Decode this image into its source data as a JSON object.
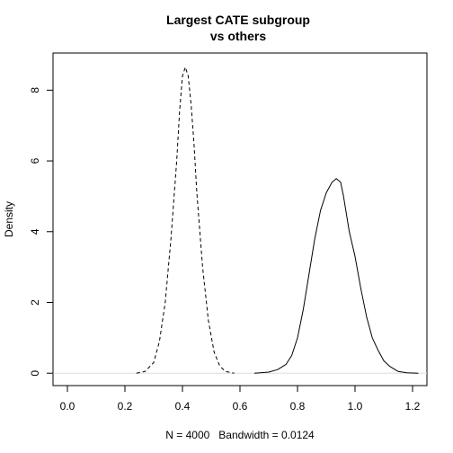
{
  "chart_data": {
    "type": "line",
    "title_lines": [
      "Largest CATE subgroup",
      "vs others"
    ],
    "xlabel": "N = 4000   Bandwidth = 0.0124",
    "ylabel": "Density",
    "xlim": [
      -0.05,
      1.25
    ],
    "ylim": [
      -0.35,
      9.05
    ],
    "x_ticks": [
      0.0,
      0.2,
      0.4,
      0.6,
      0.8,
      1.0,
      1.2
    ],
    "x_tick_labels": [
      "0.0",
      "0.2",
      "0.4",
      "0.6",
      "0.8",
      "1.0",
      "1.2"
    ],
    "y_ticks": [
      0,
      2,
      4,
      6,
      8
    ],
    "y_tick_labels": [
      "0",
      "2",
      "4",
      "6",
      "8"
    ],
    "grid": false,
    "baseline": {
      "y": 0,
      "color": "#dddddd"
    },
    "series": [
      {
        "line_style": "dashed",
        "color": "#000000",
        "points": [
          [
            0.24,
            0.0
          ],
          [
            0.27,
            0.05
          ],
          [
            0.3,
            0.3
          ],
          [
            0.32,
            0.9
          ],
          [
            0.34,
            2.0
          ],
          [
            0.36,
            3.8
          ],
          [
            0.38,
            6.0
          ],
          [
            0.39,
            7.4
          ],
          [
            0.4,
            8.4
          ],
          [
            0.41,
            8.65
          ],
          [
            0.42,
            8.4
          ],
          [
            0.43,
            7.6
          ],
          [
            0.44,
            6.5
          ],
          [
            0.45,
            5.1
          ],
          [
            0.47,
            3.0
          ],
          [
            0.49,
            1.5
          ],
          [
            0.51,
            0.6
          ],
          [
            0.53,
            0.2
          ],
          [
            0.55,
            0.05
          ],
          [
            0.58,
            0.0
          ]
        ]
      },
      {
        "line_style": "solid",
        "color": "#000000",
        "points": [
          [
            0.65,
            0.0
          ],
          [
            0.7,
            0.03
          ],
          [
            0.73,
            0.1
          ],
          [
            0.76,
            0.25
          ],
          [
            0.78,
            0.5
          ],
          [
            0.8,
            1.0
          ],
          [
            0.82,
            1.8
          ],
          [
            0.84,
            2.8
          ],
          [
            0.86,
            3.8
          ],
          [
            0.88,
            4.6
          ],
          [
            0.9,
            5.1
          ],
          [
            0.92,
            5.4
          ],
          [
            0.935,
            5.5
          ],
          [
            0.95,
            5.4
          ],
          [
            0.96,
            5.0
          ],
          [
            0.97,
            4.5
          ],
          [
            0.98,
            4.0
          ],
          [
            1.0,
            3.3
          ],
          [
            1.02,
            2.4
          ],
          [
            1.04,
            1.6
          ],
          [
            1.06,
            1.0
          ],
          [
            1.08,
            0.65
          ],
          [
            1.1,
            0.35
          ],
          [
            1.12,
            0.2
          ],
          [
            1.15,
            0.05
          ],
          [
            1.18,
            0.01
          ],
          [
            1.22,
            0.0
          ]
        ]
      }
    ]
  }
}
